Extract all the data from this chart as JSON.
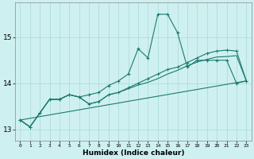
{
  "title": "",
  "xlabel": "Humidex (Indice chaleur)",
  "background_color": "#cff0f0",
  "grid_color": "#a8d8d8",
  "line_color": "#1a7a6e",
  "xlim": [
    -0.5,
    23.5
  ],
  "ylim": [
    12.75,
    15.75
  ],
  "yticks": [
    13,
    14,
    15
  ],
  "xticks": [
    0,
    1,
    2,
    3,
    4,
    5,
    6,
    7,
    8,
    9,
    10,
    11,
    12,
    13,
    14,
    15,
    16,
    17,
    18,
    19,
    20,
    21,
    22,
    23
  ],
  "series1_x": [
    0,
    1,
    2,
    3,
    4,
    5,
    6,
    7,
    8,
    9,
    10,
    11,
    12,
    13,
    14,
    15,
    16,
    17,
    18,
    19,
    20,
    21,
    22,
    23
  ],
  "series1_y": [
    13.2,
    13.05,
    13.35,
    13.65,
    13.65,
    13.75,
    13.7,
    13.75,
    13.8,
    13.95,
    14.05,
    14.2,
    14.75,
    14.55,
    15.5,
    15.5,
    15.1,
    14.35,
    14.5,
    14.5,
    14.5,
    14.5,
    14.0,
    14.05
  ],
  "series2_x": [
    0,
    1,
    2,
    3,
    4,
    5,
    6,
    7,
    8,
    9,
    10,
    11,
    12,
    13,
    14,
    15,
    16,
    17,
    18,
    19,
    20,
    21,
    22,
    23
  ],
  "series2_y": [
    13.2,
    13.05,
    13.35,
    13.65,
    13.65,
    13.75,
    13.7,
    13.55,
    13.6,
    13.75,
    13.8,
    13.9,
    14.0,
    14.1,
    14.2,
    14.3,
    14.35,
    14.45,
    14.55,
    14.65,
    14.7,
    14.72,
    14.7,
    14.05
  ],
  "series3_x": [
    0,
    1,
    2,
    3,
    4,
    5,
    6,
    7,
    8,
    9,
    10,
    11,
    12,
    13,
    14,
    15,
    16,
    17,
    18,
    19,
    20,
    21,
    22,
    23
  ],
  "series3_y": [
    13.2,
    13.05,
    13.35,
    13.65,
    13.65,
    13.75,
    13.7,
    13.55,
    13.6,
    13.75,
    13.8,
    13.88,
    13.96,
    14.02,
    14.1,
    14.2,
    14.28,
    14.38,
    14.46,
    14.52,
    14.57,
    14.58,
    14.6,
    14.05
  ],
  "series4_x": [
    0,
    23
  ],
  "series4_y": [
    13.2,
    14.05
  ]
}
